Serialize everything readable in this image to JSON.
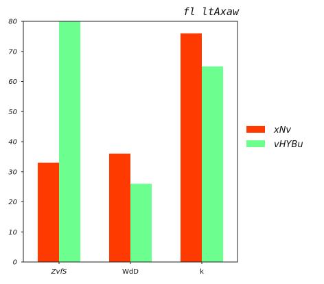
{
  "chart_data": {
    "type": "bar",
    "title": "fl  ltAxaw",
    "xlabel": "",
    "ylabel": "",
    "categories": [
      "ZvfS",
      "WdD",
      "k"
    ],
    "series": [
      {
        "name": "xNv",
        "color": "#ff3a00",
        "values": [
          33,
          36,
          76
        ]
      },
      {
        "name": "vHYBu",
        "color": "#6cff8f",
        "values": [
          80,
          26,
          65
        ]
      }
    ],
    "ylim": [
      0,
      80
    ],
    "yticks": [
      "0",
      "10",
      "20",
      "30",
      "40",
      "50",
      "60",
      "70",
      "80"
    ],
    "grid": false,
    "legend_position": "right"
  }
}
